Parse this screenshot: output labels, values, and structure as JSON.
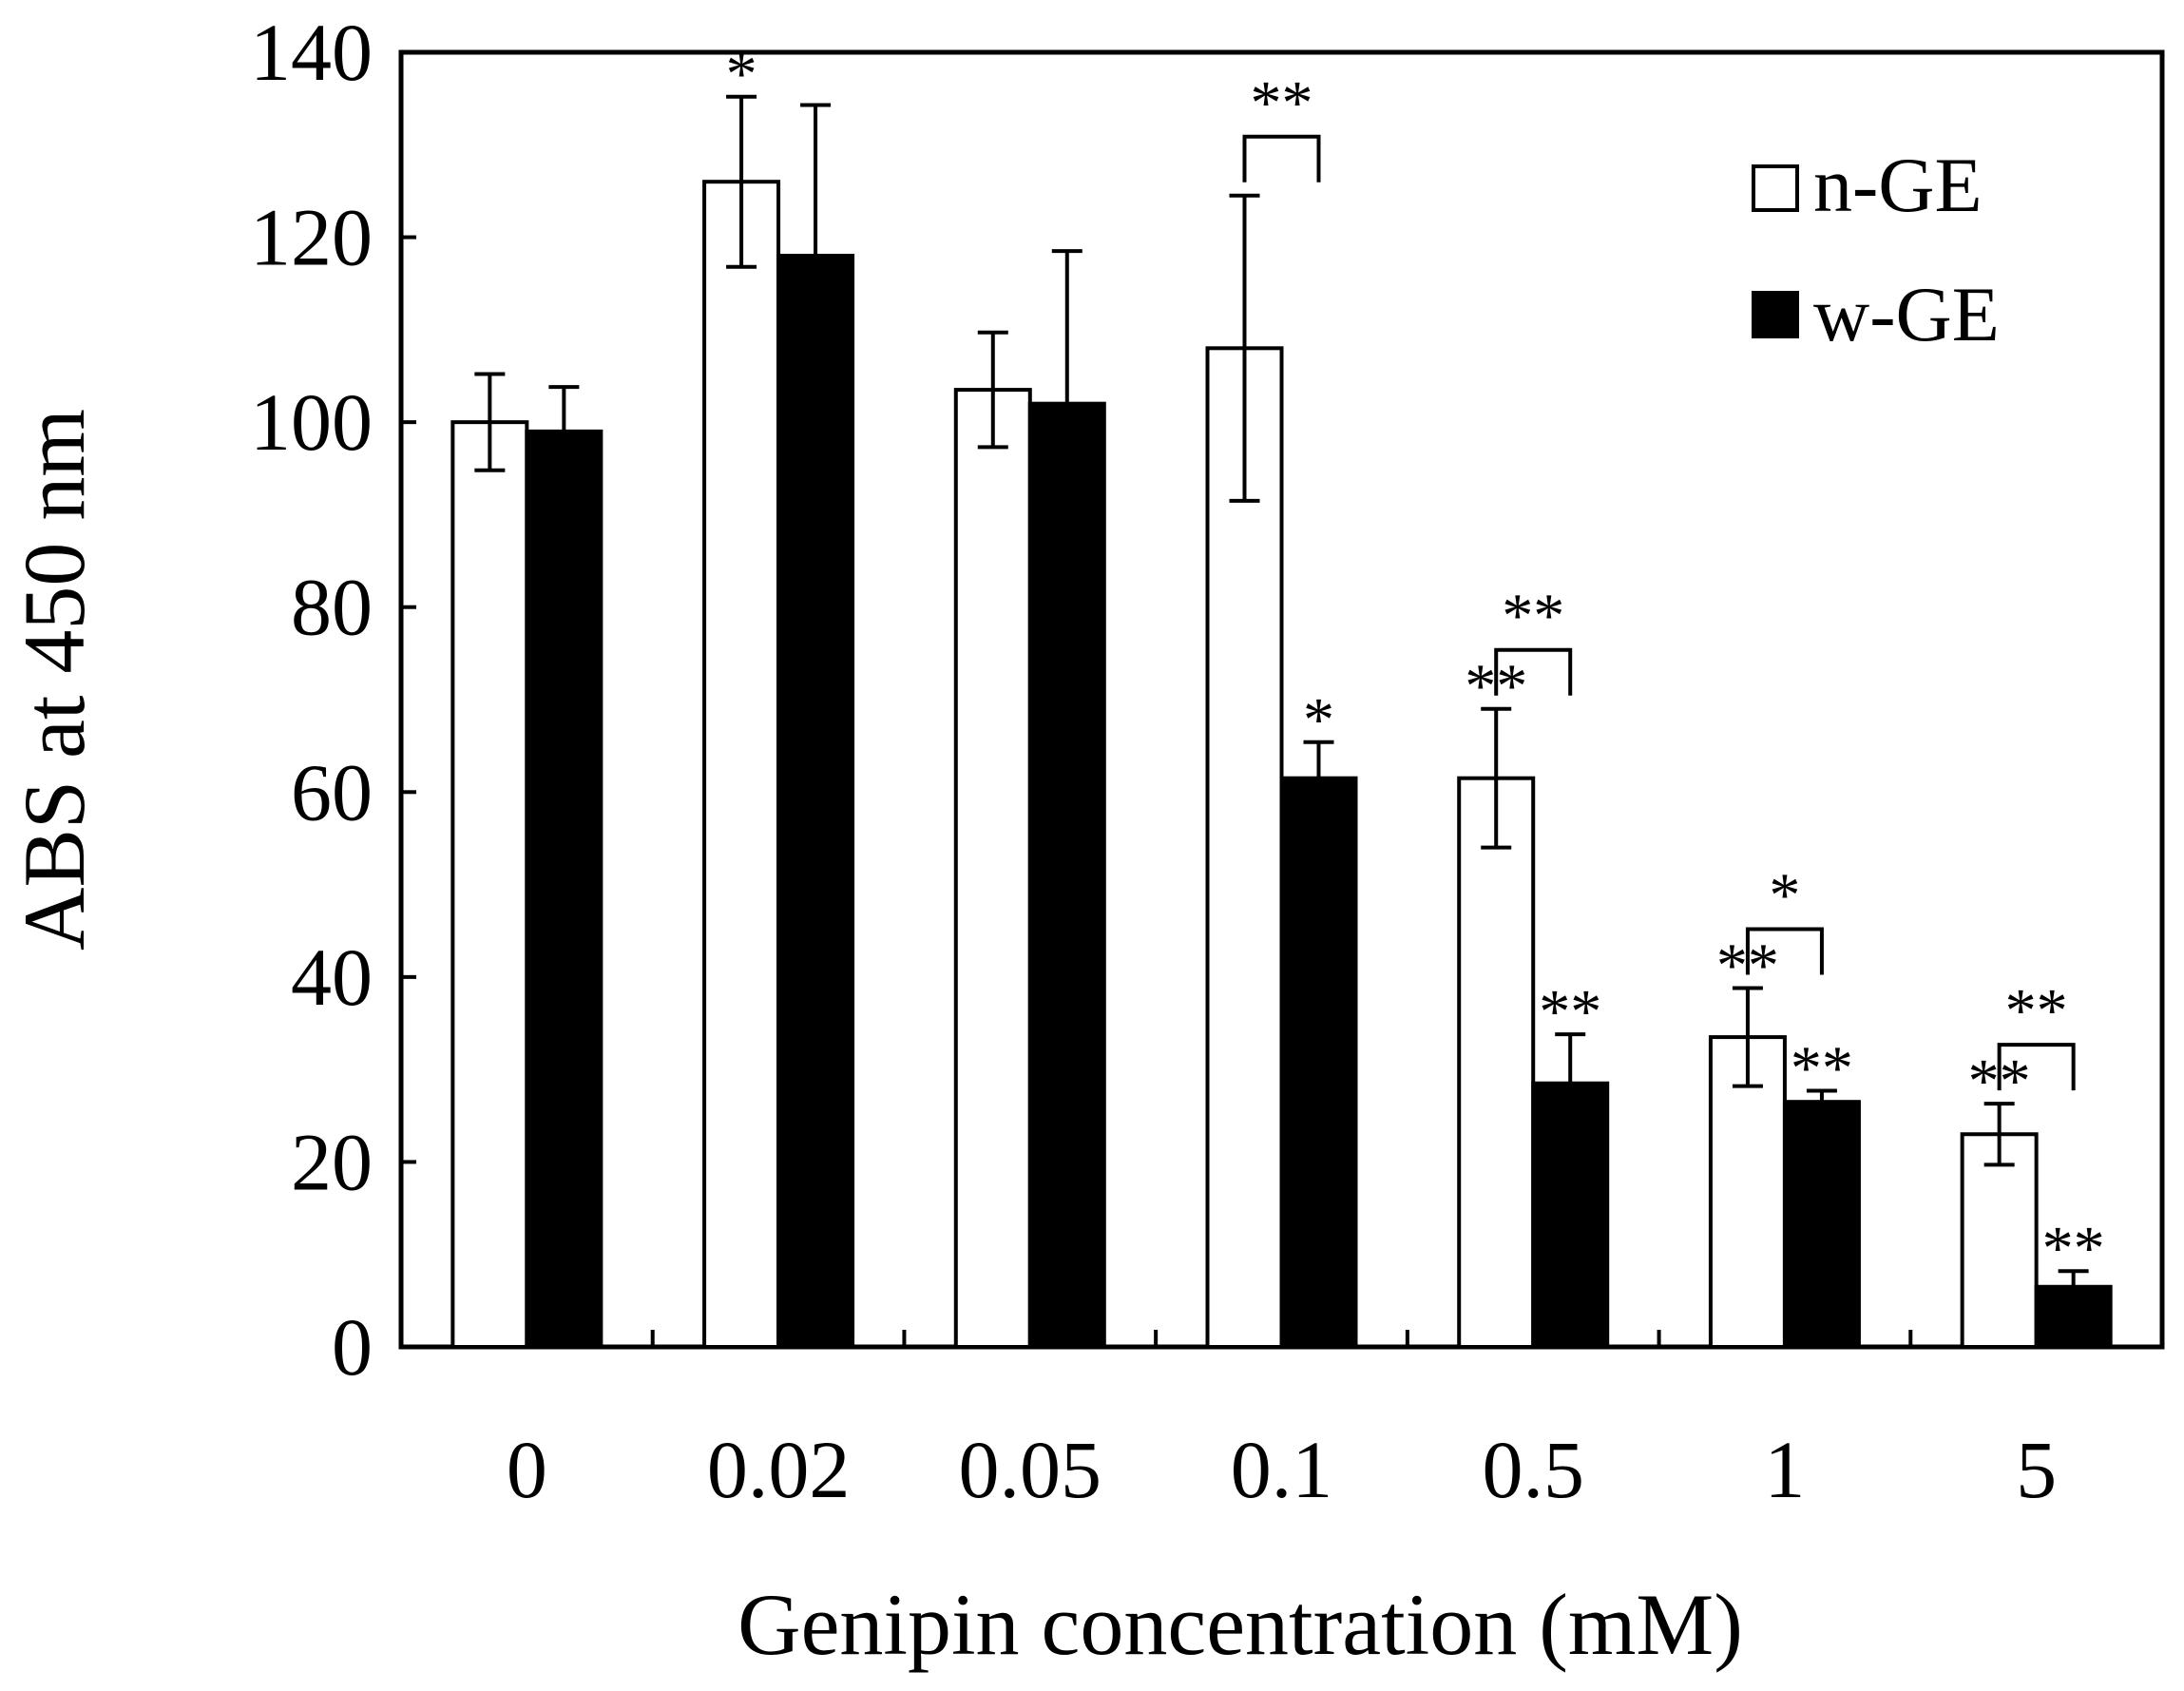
{
  "chart_data": {
    "type": "bar",
    "title": "",
    "xlabel": "Genipin concentration (mM)",
    "ylabel": "ABS at 450 nm",
    "categories": [
      "0",
      "0.02",
      "0.05",
      "0.1",
      "0.5",
      "1",
      "5"
    ],
    "ylim": [
      0,
      140
    ],
    "yticks": [
      0,
      20,
      40,
      60,
      80,
      100,
      120,
      140
    ],
    "grid": false,
    "legend_position": "top-right",
    "series": [
      {
        "name": "n-GE",
        "fill": "#ffffff",
        "values": [
          100,
          126,
          103.5,
          108,
          61.5,
          33.5,
          23
        ],
        "errors": [
          5.2,
          9.2,
          6.2,
          16.5,
          7.5,
          5.3,
          3.3
        ],
        "significance": [
          "",
          "*",
          "",
          "",
          "**",
          "**",
          "**"
        ]
      },
      {
        "name": "w-GE",
        "fill": "#000000",
        "values": [
          99,
          118,
          102,
          61.5,
          28.5,
          26.5,
          6.5
        ],
        "errors": [
          4.8,
          16.3,
          16.5,
          3.9,
          5.3,
          1.2,
          1.7
        ],
        "significance": [
          "",
          "",
          "",
          "*",
          "**",
          "**",
          "**"
        ]
      }
    ],
    "comparisons": [
      {
        "category": "0.1",
        "label": "**"
      },
      {
        "category": "0.5",
        "label": "**"
      },
      {
        "category": "1",
        "label": "*"
      },
      {
        "category": "5",
        "label": "**"
      }
    ]
  }
}
